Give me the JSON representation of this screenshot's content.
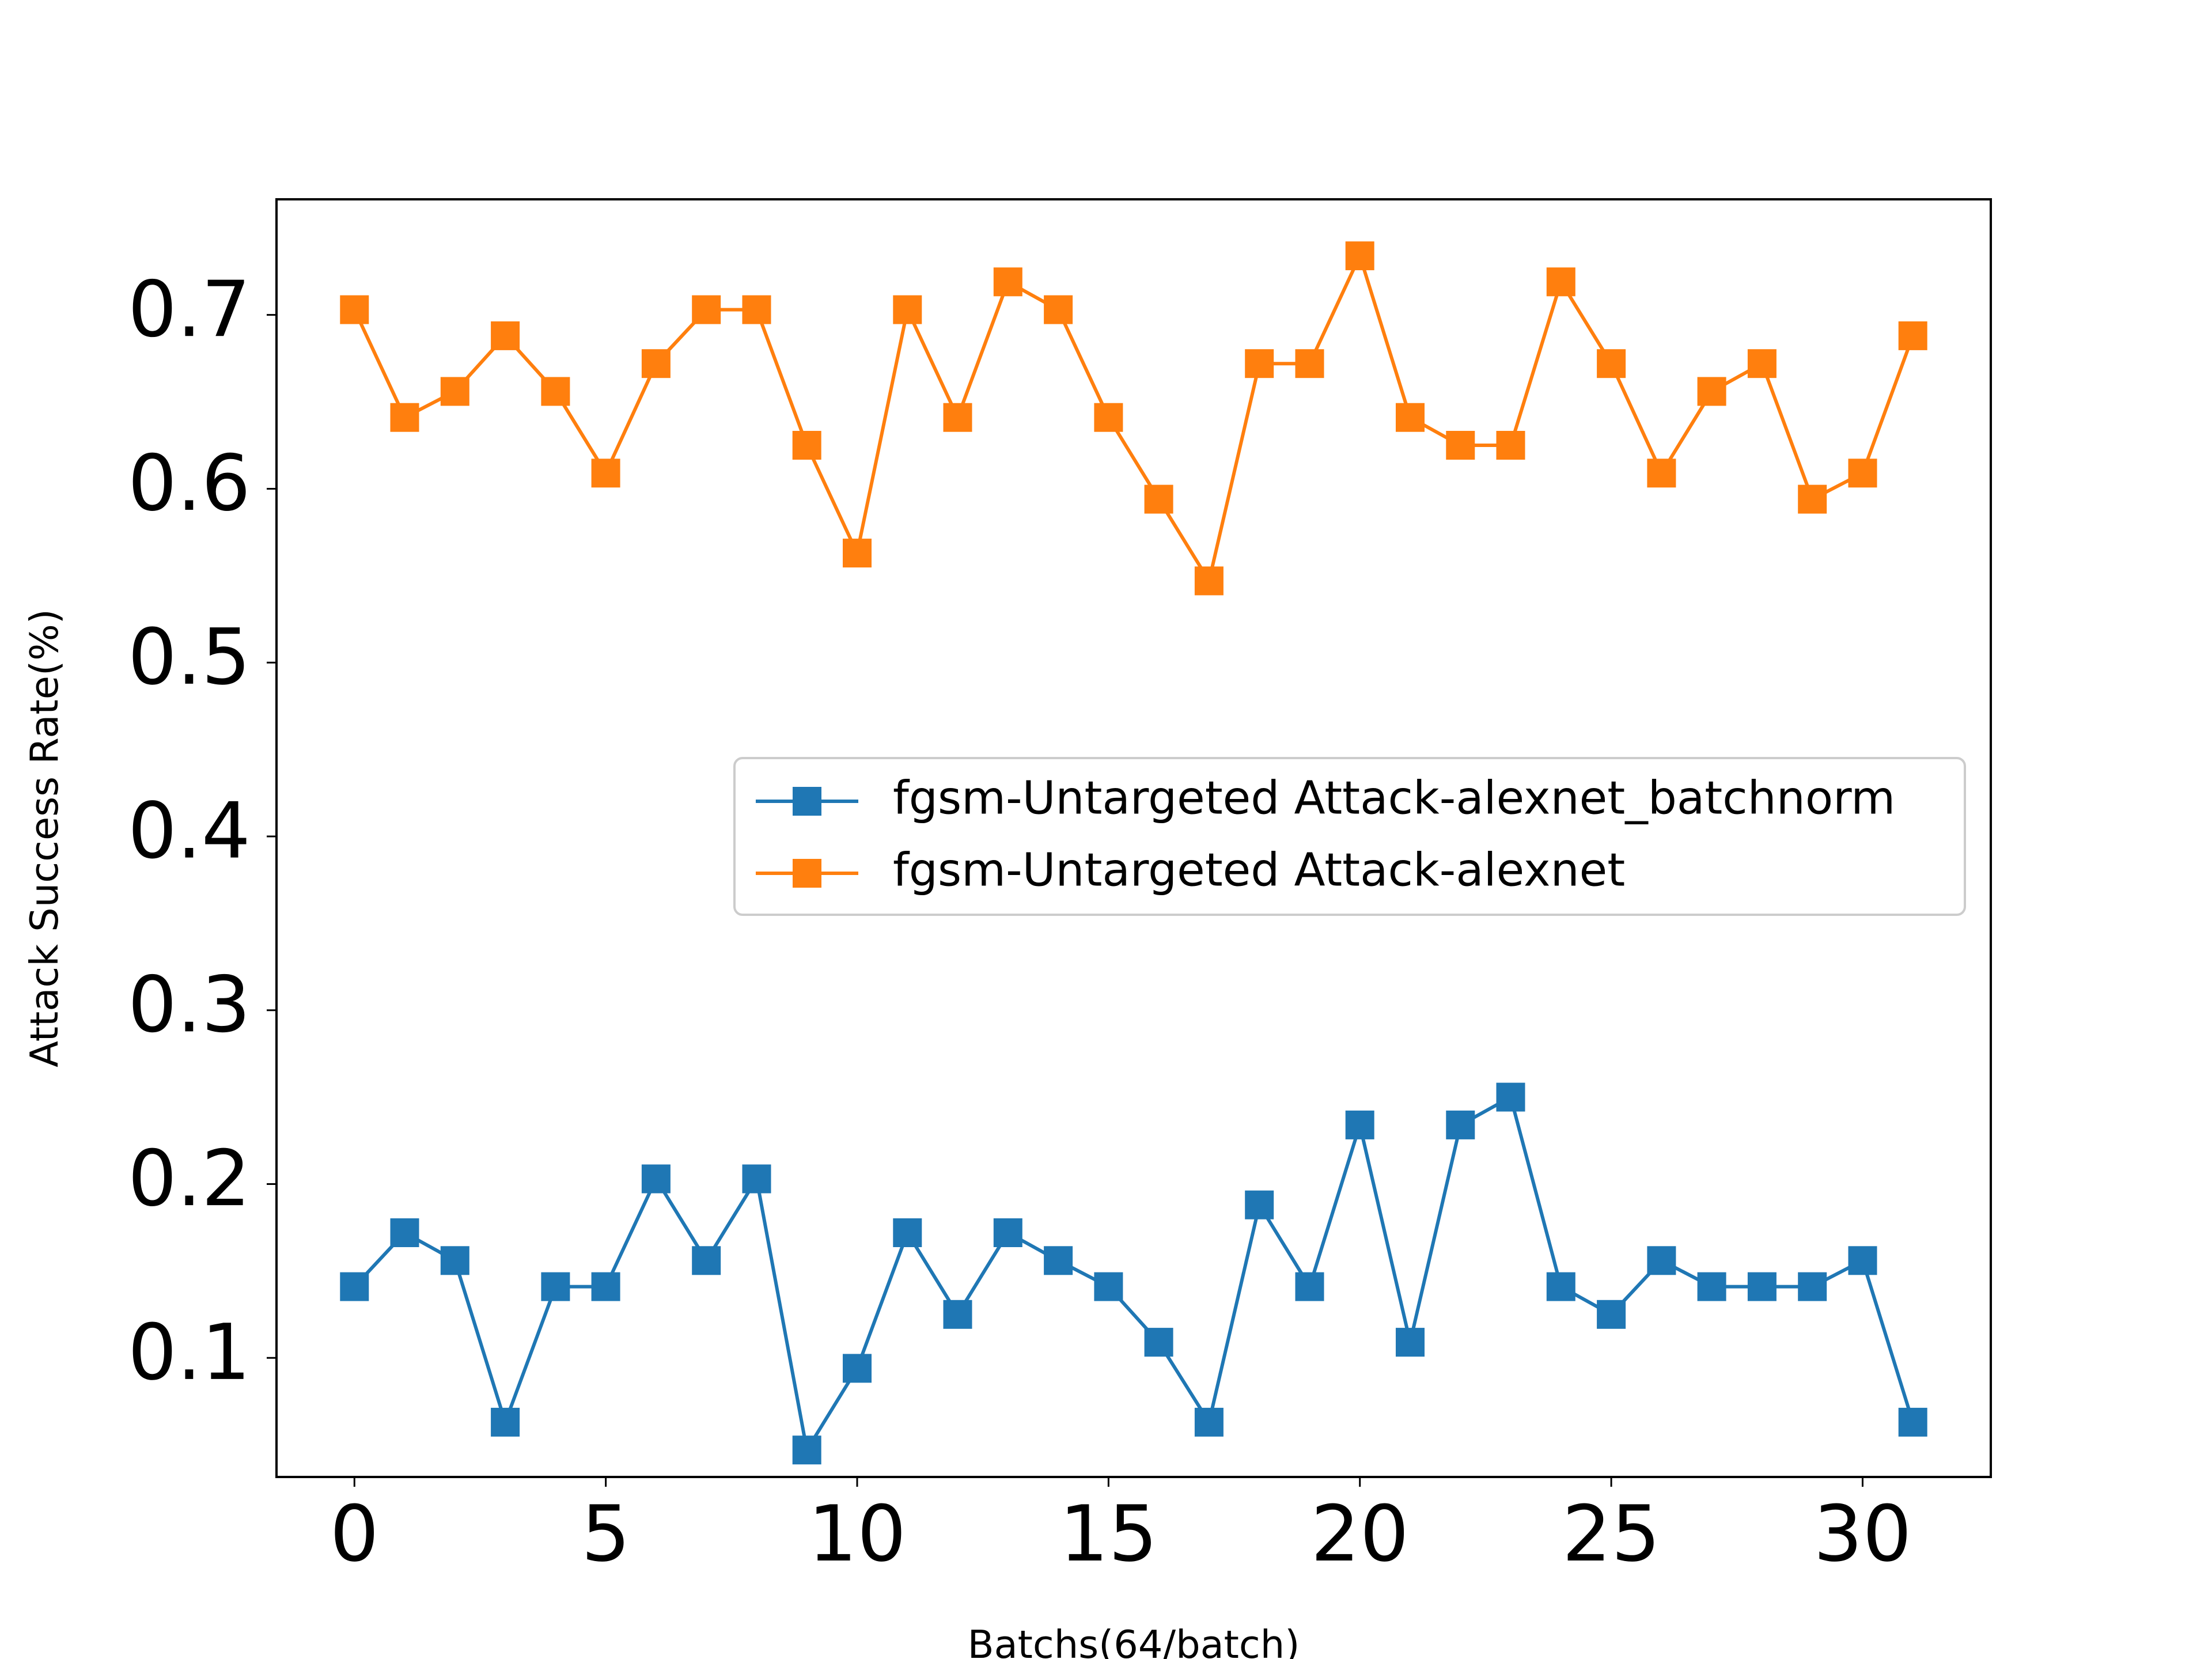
{
  "chart_data": {
    "type": "line",
    "title": "",
    "xlabel": "Batchs(64/batch)",
    "ylabel": "Attack Success Rate(%)",
    "xlim": [
      -1.55,
      32.55
    ],
    "ylim": [
      0.0315,
      0.7665
    ],
    "xticks": [
      0,
      5,
      10,
      15,
      20,
      25,
      30
    ],
    "yticks": [
      0.1,
      0.2,
      0.3,
      0.4,
      0.5,
      0.6,
      0.7
    ],
    "xtick_labels": [
      "0",
      "5",
      "10",
      "15",
      "20",
      "25",
      "30"
    ],
    "ytick_labels": [
      "0.1",
      "0.2",
      "0.3",
      "0.4",
      "0.5",
      "0.6",
      "0.7"
    ],
    "grid": false,
    "legend_position": "center-right",
    "marker": "square",
    "x": [
      0,
      1,
      2,
      3,
      4,
      5,
      6,
      7,
      8,
      9,
      10,
      11,
      12,
      13,
      14,
      15,
      16,
      17,
      18,
      19,
      20,
      21,
      22,
      23,
      24,
      25,
      26,
      27,
      28,
      29,
      30,
      31
    ],
    "series": [
      {
        "name": "fgsm-Untargeted Attack-alexnet_batchnorm",
        "color": "#1f77b4",
        "values": [
          0.141,
          0.172,
          0.156,
          0.063,
          0.141,
          0.141,
          0.203,
          0.156,
          0.203,
          0.047,
          0.094,
          0.172,
          0.125,
          0.172,
          0.156,
          0.141,
          0.109,
          0.063,
          0.188,
          0.141,
          0.234,
          0.109,
          0.234,
          0.25,
          0.141,
          0.125,
          0.156,
          0.141,
          0.141,
          0.141,
          0.156,
          0.063
        ]
      },
      {
        "name": "fgsm-Untargeted Attack-alexnet",
        "color": "#ff7f0e",
        "values": [
          0.703,
          0.641,
          0.656,
          0.688,
          0.656,
          0.609,
          0.672,
          0.703,
          0.703,
          0.625,
          0.563,
          0.703,
          0.641,
          0.719,
          0.703,
          0.641,
          0.594,
          0.547,
          0.672,
          0.672,
          0.734,
          0.641,
          0.625,
          0.625,
          0.719,
          0.672,
          0.609,
          0.656,
          0.672,
          0.594,
          0.609,
          0.688
        ]
      }
    ]
  }
}
